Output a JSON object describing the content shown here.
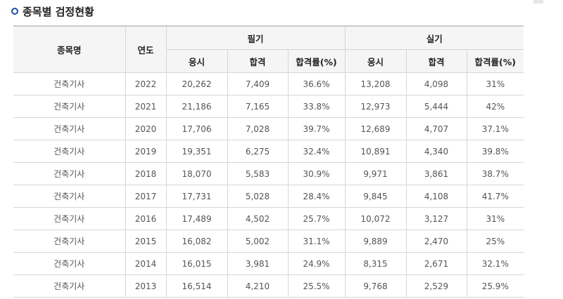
{
  "section": {
    "title": "종목별 검정현황"
  },
  "table": {
    "headers": {
      "subject": "종목명",
      "year": "연도",
      "written": "필기",
      "practical": "실기",
      "applicants": "응시",
      "passed": "합격",
      "pass_rate": "합격률(%)"
    },
    "rows": [
      {
        "subject": "건축기사",
        "year": "2022",
        "w_app": "20,262",
        "w_pass": "7,409",
        "w_rate": "36.6%",
        "p_app": "13,208",
        "p_pass": "4,098",
        "p_rate": "31%"
      },
      {
        "subject": "건축기사",
        "year": "2021",
        "w_app": "21,186",
        "w_pass": "7,165",
        "w_rate": "33.8%",
        "p_app": "12,973",
        "p_pass": "5,444",
        "p_rate": "42%"
      },
      {
        "subject": "건축기사",
        "year": "2020",
        "w_app": "17,706",
        "w_pass": "7,028",
        "w_rate": "39.7%",
        "p_app": "12,689",
        "p_pass": "4,707",
        "p_rate": "37.1%"
      },
      {
        "subject": "건축기사",
        "year": "2019",
        "w_app": "19,351",
        "w_pass": "6,275",
        "w_rate": "32.4%",
        "p_app": "10,891",
        "p_pass": "4,340",
        "p_rate": "39.8%"
      },
      {
        "subject": "건축기사",
        "year": "2018",
        "w_app": "18,070",
        "w_pass": "5,583",
        "w_rate": "30.9%",
        "p_app": "9,971",
        "p_pass": "3,861",
        "p_rate": "38.7%"
      },
      {
        "subject": "건축기사",
        "year": "2017",
        "w_app": "17,731",
        "w_pass": "5,028",
        "w_rate": "28.4%",
        "p_app": "9,845",
        "p_pass": "4,108",
        "p_rate": "41.7%"
      },
      {
        "subject": "건축기사",
        "year": "2016",
        "w_app": "17,489",
        "w_pass": "4,502",
        "w_rate": "25.7%",
        "p_app": "10,072",
        "p_pass": "3,127",
        "p_rate": "31%"
      },
      {
        "subject": "건축기사",
        "year": "2015",
        "w_app": "16,082",
        "w_pass": "5,002",
        "w_rate": "31.1%",
        "p_app": "9,889",
        "p_pass": "2,470",
        "p_rate": "25%"
      },
      {
        "subject": "건축기사",
        "year": "2014",
        "w_app": "16,015",
        "w_pass": "3,981",
        "w_rate": "24.9%",
        "p_app": "8,315",
        "p_pass": "2,671",
        "p_rate": "32.1%"
      },
      {
        "subject": "건축기사",
        "year": "2013",
        "w_app": "16,514",
        "w_pass": "4,210",
        "w_rate": "25.5%",
        "p_app": "9,768",
        "p_pass": "2,529",
        "p_rate": "25.9%"
      }
    ]
  }
}
